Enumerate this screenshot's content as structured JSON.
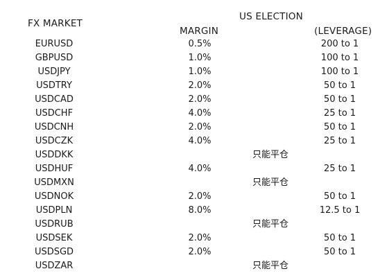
{
  "headers": {
    "fx_market": "FX MARKET",
    "us_election": "US ELECTION",
    "margin": "MARGIN",
    "leverage": "(LEVERAGE)"
  },
  "rows": [
    {
      "symbol": "EURUSD",
      "margin": "0.5%",
      "leverage": "200 to 1",
      "note": ""
    },
    {
      "symbol": "GBPUSD",
      "margin": "1.0%",
      "leverage": "100 to 1",
      "note": ""
    },
    {
      "symbol": "USDJPY",
      "margin": "1.0%",
      "leverage": "100 to 1",
      "note": ""
    },
    {
      "symbol": "USDTRY",
      "margin": "2.0%",
      "leverage": "50 to 1",
      "note": ""
    },
    {
      "symbol": "USDCAD",
      "margin": "2.0%",
      "leverage": "50 to 1",
      "note": ""
    },
    {
      "symbol": "USDCHF",
      "margin": "4.0%",
      "leverage": "25 to 1",
      "note": ""
    },
    {
      "symbol": "USDCNH",
      "margin": "2.0%",
      "leverage": "50 to 1",
      "note": ""
    },
    {
      "symbol": "USDCZK",
      "margin": "4.0%",
      "leverage": "25 to 1",
      "note": ""
    },
    {
      "symbol": "USDDKK",
      "margin": "",
      "leverage": "",
      "note": "只能平仓"
    },
    {
      "symbol": "USDHUF",
      "margin": "4.0%",
      "leverage": "25 to 1",
      "note": ""
    },
    {
      "symbol": "USDMXN",
      "margin": "",
      "leverage": "",
      "note": "只能平仓"
    },
    {
      "symbol": "USDNOK",
      "margin": "2.0%",
      "leverage": "50 to 1",
      "note": ""
    },
    {
      "symbol": "USDPLN",
      "margin": "8.0%",
      "leverage": "12.5 to 1",
      "note": ""
    },
    {
      "symbol": "USDRUB",
      "margin": "",
      "leverage": "",
      "note": "只能平仓"
    },
    {
      "symbol": "USDSEK",
      "margin": "2.0%",
      "leverage": "50 to 1",
      "note": ""
    },
    {
      "symbol": "USDSGD",
      "margin": "2.0%",
      "leverage": "50 to 1",
      "note": ""
    },
    {
      "symbol": "USDZAR",
      "margin": "",
      "leverage": "",
      "note": "只能平仓"
    }
  ]
}
